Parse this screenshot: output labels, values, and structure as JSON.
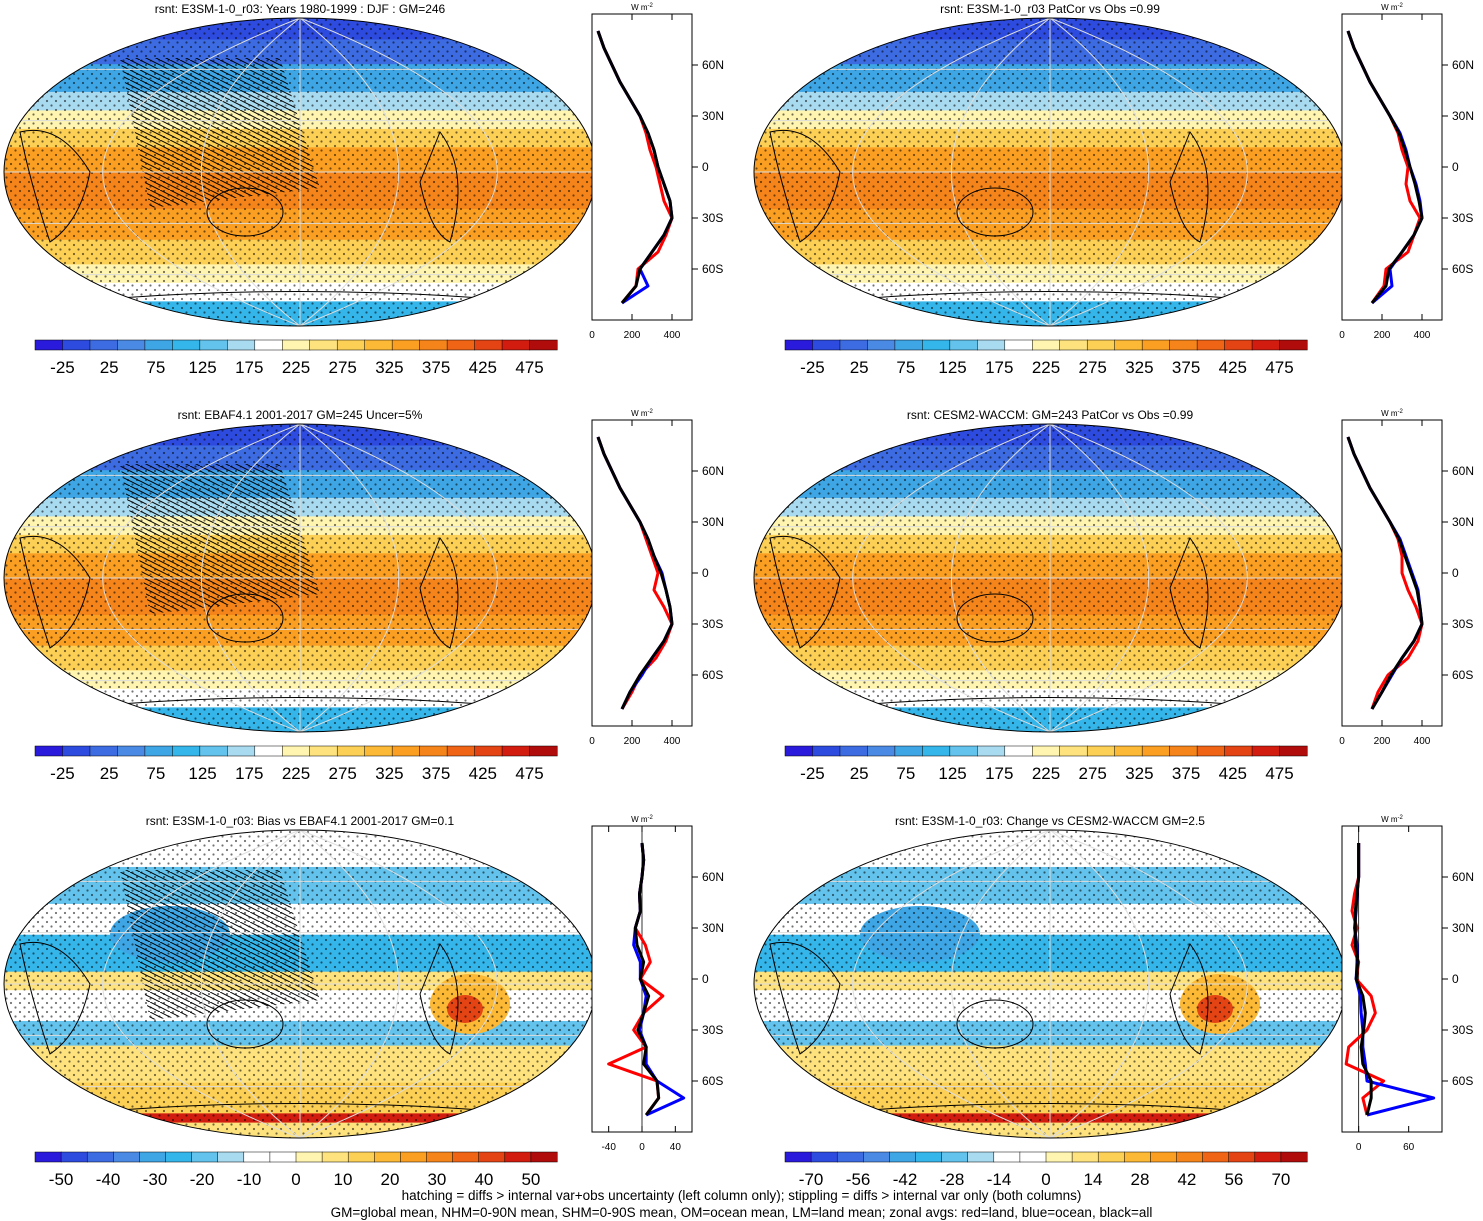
{
  "colors": {
    "abs_scale": [
      "#2a1bdc",
      "#2e4bdf",
      "#3c6be2",
      "#4a8ae4",
      "#3fa6e6",
      "#35b6ea",
      "#63c3ec",
      "#a8daf0",
      "#ffffff",
      "#fff5b0",
      "#fde27e",
      "#fccf55",
      "#fbb935",
      "#fa9f22",
      "#f5851a",
      "#f06416",
      "#e44414",
      "#d21c10",
      "#b00c0c"
    ],
    "diff_scale": [
      "#2a1bdc",
      "#2e4bdf",
      "#3c6be2",
      "#4a8ae4",
      "#3fa6e6",
      "#35b6ea",
      "#63c3ec",
      "#a8daf0",
      "#ffffff",
      "#ffffff",
      "#fff5b0",
      "#fde27e",
      "#fccf55",
      "#fbb935",
      "#fa9f22",
      "#f5851a",
      "#f06416",
      "#e44414",
      "#d21c10",
      "#b00c0c"
    ],
    "land_line": "#ff0000",
    "ocean_line": "#0000ff",
    "all_line": "#000000"
  },
  "panels": [
    {
      "title": "rsnt: E3SM-1-0_r03: Years 1980-1999 : DJF : GM=246",
      "kind": "abs",
      "hatch": true,
      "colorbar_labels": [
        "-25",
        "25",
        "75",
        "125",
        "175",
        "225",
        "275",
        "325",
        "375",
        "425",
        "475"
      ],
      "zonal_xticks": [
        "0",
        "200",
        "400"
      ],
      "zonal_xlim": [
        0,
        500
      ],
      "zonal_unit": "W m-2",
      "lat_ticks": [
        "60N",
        "30N",
        "0",
        "30S",
        "60S"
      ]
    },
    {
      "title": "rsnt: E3SM-1-0_r03 PatCor vs Obs =0.99",
      "kind": "abs",
      "hatch": false,
      "colorbar_labels": [
        "-25",
        "25",
        "75",
        "125",
        "175",
        "225",
        "275",
        "325",
        "375",
        "425",
        "475"
      ],
      "zonal_xticks": [
        "0",
        "200",
        "400"
      ],
      "zonal_xlim": [
        0,
        500
      ],
      "zonal_unit": "W m-2",
      "lat_ticks": [
        "60N",
        "30N",
        "0",
        "30S",
        "60S"
      ]
    },
    {
      "title": "rsnt: EBAF4.1 2001-2017 GM=245 Uncer=5%",
      "kind": "abs",
      "hatch": true,
      "colorbar_labels": [
        "-25",
        "25",
        "75",
        "125",
        "175",
        "225",
        "275",
        "325",
        "375",
        "425",
        "475"
      ],
      "zonal_xticks": [
        "0",
        "200",
        "400"
      ],
      "zonal_xlim": [
        0,
        500
      ],
      "zonal_unit": "W m-2",
      "lat_ticks": [
        "60N",
        "30N",
        "0",
        "30S",
        "60S"
      ]
    },
    {
      "title": "rsnt: CESM2-WACCM: GM=243 PatCor vs Obs =0.99",
      "kind": "abs",
      "hatch": false,
      "colorbar_labels": [
        "-25",
        "25",
        "75",
        "125",
        "175",
        "225",
        "275",
        "325",
        "375",
        "425",
        "475"
      ],
      "zonal_xticks": [
        "0",
        "200",
        "400"
      ],
      "zonal_xlim": [
        0,
        500
      ],
      "zonal_unit": "W m-2",
      "lat_ticks": [
        "60N",
        "30N",
        "0",
        "30S",
        "60S"
      ]
    },
    {
      "title": "rsnt: E3SM-1-0_r03: Bias vs EBAF4.1 2001-2017 GM=0.1",
      "kind": "diff",
      "hatch": true,
      "colorbar_labels": [
        "-50",
        "-40",
        "-30",
        "-20",
        "-10",
        "0",
        "10",
        "20",
        "30",
        "40",
        "50"
      ],
      "zonal_xticks": [
        "-40",
        "0",
        "40"
      ],
      "zonal_xlim": [
        -60,
        60
      ],
      "zonal_unit": "W m-2",
      "lat_ticks": [
        "60N",
        "30N",
        "0",
        "30S",
        "60S"
      ]
    },
    {
      "title": "rsnt: E3SM-1-0_r03: Change vs CESM2-WACCM GM=2.5",
      "kind": "diff",
      "hatch": false,
      "colorbar_labels": [
        "-70",
        "-56",
        "-42",
        "-28",
        "-14",
        "0",
        "14",
        "28",
        "42",
        "56",
        "70"
      ],
      "zonal_xticks": [
        "0",
        "60"
      ],
      "zonal_xlim": [
        -20,
        100
      ],
      "zonal_unit": "W m-2",
      "lat_ticks": [
        "60N",
        "30N",
        "0",
        "30S",
        "60S"
      ]
    }
  ],
  "chart_data": [
    {
      "type": "line",
      "title": "rsnt: E3SM-1-0_r03: Years 1980-1999 : DJF : GM=246",
      "xlabel": "W m-2",
      "xlim": [
        0,
        500
      ],
      "y": [
        80,
        70,
        60,
        50,
        40,
        30,
        20,
        10,
        0,
        -10,
        -20,
        -30,
        -40,
        -50,
        -60,
        -70,
        -80
      ],
      "series": [
        {
          "name": "land",
          "values": [
            30,
            60,
            100,
            140,
            190,
            240,
            270,
            290,
            320,
            340,
            360,
            400,
            370,
            330,
            230,
            220,
            150
          ]
        },
        {
          "name": "ocean",
          "values": [
            30,
            60,
            100,
            140,
            190,
            240,
            280,
            310,
            330,
            360,
            390,
            400,
            360,
            300,
            240,
            280,
            150
          ]
        },
        {
          "name": "all",
          "values": [
            30,
            60,
            100,
            140,
            190,
            240,
            280,
            310,
            330,
            360,
            390,
            400,
            360,
            300,
            240,
            220,
            150
          ]
        }
      ]
    },
    {
      "type": "line",
      "title": "rsnt: E3SM-1-0_r03 PatCor vs Obs =0.99",
      "xlabel": "W m-2",
      "xlim": [
        0,
        500
      ],
      "y": [
        80,
        70,
        60,
        50,
        40,
        30,
        20,
        10,
        0,
        -10,
        -20,
        -30,
        -40,
        -50,
        -60,
        -70,
        -80
      ],
      "series": [
        {
          "name": "land",
          "values": [
            30,
            60,
            100,
            140,
            190,
            240,
            280,
            300,
            330,
            320,
            340,
            390,
            360,
            330,
            220,
            210,
            150
          ]
        },
        {
          "name": "ocean",
          "values": [
            30,
            60,
            100,
            140,
            190,
            240,
            290,
            320,
            340,
            370,
            390,
            400,
            360,
            300,
            240,
            250,
            150
          ]
        },
        {
          "name": "all",
          "values": [
            30,
            60,
            100,
            140,
            190,
            240,
            285,
            315,
            340,
            365,
            385,
            400,
            360,
            300,
            235,
            220,
            150
          ]
        }
      ]
    },
    {
      "type": "line",
      "title": "rsnt: EBAF4.1 2001-2017 GM=245 Uncer=5%",
      "xlabel": "W m-2",
      "xlim": [
        0,
        500
      ],
      "y": [
        80,
        70,
        60,
        50,
        40,
        30,
        20,
        10,
        0,
        -10,
        -20,
        -30,
        -40,
        -50,
        -60,
        -70,
        -80
      ],
      "series": [
        {
          "name": "land",
          "values": [
            30,
            60,
            100,
            140,
            190,
            240,
            270,
            300,
            330,
            310,
            360,
            400,
            370,
            320,
            240,
            200,
            150
          ]
        },
        {
          "name": "ocean",
          "values": [
            30,
            60,
            100,
            140,
            190,
            240,
            280,
            310,
            350,
            370,
            390,
            400,
            360,
            300,
            250,
            190,
            150
          ]
        },
        {
          "name": "all",
          "values": [
            30,
            60,
            100,
            140,
            190,
            240,
            280,
            310,
            345,
            370,
            390,
            400,
            360,
            300,
            240,
            190,
            150
          ]
        }
      ]
    },
    {
      "type": "line",
      "title": "rsnt: CESM2-WACCM: GM=243 PatCor vs Obs =0.99",
      "xlabel": "W m-2",
      "xlim": [
        0,
        500
      ],
      "y": [
        80,
        70,
        60,
        50,
        40,
        30,
        20,
        10,
        0,
        -10,
        -20,
        -30,
        -40,
        -50,
        -60,
        -70,
        -80
      ],
      "series": [
        {
          "name": "land",
          "values": [
            30,
            60,
            100,
            140,
            190,
            240,
            280,
            300,
            300,
            330,
            370,
            400,
            380,
            330,
            230,
            180,
            150
          ]
        },
        {
          "name": "ocean",
          "values": [
            30,
            60,
            100,
            140,
            190,
            240,
            290,
            320,
            350,
            380,
            390,
            400,
            360,
            300,
            250,
            200,
            150
          ]
        },
        {
          "name": "all",
          "values": [
            30,
            60,
            100,
            140,
            190,
            240,
            285,
            315,
            345,
            375,
            390,
            400,
            360,
            300,
            245,
            200,
            150
          ]
        }
      ]
    },
    {
      "type": "line",
      "title": "rsnt: E3SM-1-0_r03: Bias vs EBAF4.1 2001-2017 GM=0.1",
      "xlabel": "W m-2",
      "xlim": [
        -60,
        60
      ],
      "y": [
        80,
        70,
        60,
        50,
        40,
        30,
        20,
        10,
        0,
        -10,
        -20,
        -30,
        -40,
        -50,
        -60,
        -70,
        -80
      ],
      "series": [
        {
          "name": "land",
          "values": [
            0,
            2,
            0,
            -3,
            -2,
            -8,
            4,
            10,
            -2,
            25,
            2,
            -10,
            5,
            -40,
            18,
            20,
            5
          ]
        },
        {
          "name": "ocean",
          "values": [
            0,
            2,
            0,
            -3,
            -2,
            -8,
            -10,
            -2,
            -2,
            5,
            2,
            -3,
            5,
            5,
            18,
            50,
            5
          ]
        },
        {
          "name": "all",
          "values": [
            0,
            2,
            0,
            -3,
            -2,
            -8,
            -6,
            2,
            -2,
            8,
            2,
            -5,
            5,
            2,
            18,
            20,
            5
          ]
        }
      ]
    },
    {
      "type": "line",
      "title": "rsnt: E3SM-1-0_r03: Change vs CESM2-WACCM GM=2.5",
      "xlabel": "W m-2",
      "xlim": [
        -20,
        100
      ],
      "y": [
        80,
        70,
        60,
        50,
        40,
        30,
        20,
        10,
        0,
        -10,
        -20,
        -30,
        -40,
        -50,
        -60,
        -70,
        -80
      ],
      "series": [
        {
          "name": "land",
          "values": [
            0,
            0,
            0,
            -5,
            -8,
            -2,
            -8,
            0,
            -3,
            15,
            20,
            10,
            -12,
            -15,
            30,
            5,
            10
          ]
        },
        {
          "name": "ocean",
          "values": [
            0,
            0,
            0,
            -2,
            -3,
            -5,
            -2,
            -2,
            -3,
            2,
            3,
            5,
            5,
            8,
            10,
            90,
            10
          ]
        },
        {
          "name": "all",
          "values": [
            0,
            0,
            0,
            -2,
            -4,
            -4,
            -4,
            -1,
            -3,
            5,
            8,
            6,
            3,
            5,
            15,
            15,
            10
          ]
        }
      ]
    }
  ],
  "footnote": {
    "line1": "hatching = diffs > internal var+obs uncertainty (left column only); stippling = diffs > internal var only (both columns)",
    "line2": "GM=global mean, NHM=0-90N mean, SHM=0-90S mean, OM=ocean mean, LM=land mean; zonal avgs: red=land, blue=ocean, black=all"
  }
}
